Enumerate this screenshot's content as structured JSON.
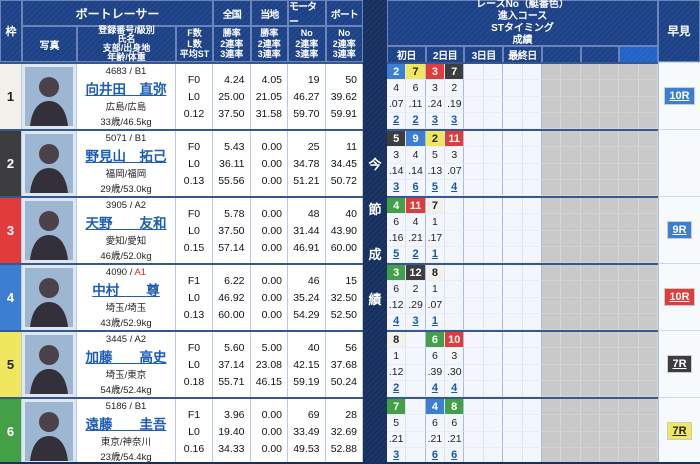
{
  "colors": {
    "white": "#f2f1ec",
    "black": "#3d3d3f",
    "red": "#e23b3c",
    "blue": "#3c7ed2",
    "yellow": "#efe85e",
    "green": "#43a047",
    "navy": "#16305f",
    "link_blue": "#1a5cb8",
    "class_red": "#d8262a"
  },
  "header": {
    "left": {
      "frame": "枠",
      "racer_group": "ボートレーサー",
      "photo": "写真",
      "info_lines": [
        "登録番号/級別",
        "氏名",
        "支部/出身地",
        "年齢/体重"
      ],
      "fl_lines": [
        "F数",
        "L数",
        "平均ST"
      ],
      "zenkoku": "全国",
      "touchi": "当地",
      "motor": "モーター",
      "boat": "ボート",
      "rate_lines": [
        "勝率",
        "2連率",
        "3連率"
      ],
      "no_lines": [
        "No",
        "2連率",
        "3連率"
      ]
    },
    "right": {
      "title_lines": [
        "レースNo（艇番色）",
        "進入コース",
        "STタイミング",
        "成績"
      ],
      "days": [
        "初日",
        "2日目",
        "3日目",
        "最終日",
        "",
        "",
        ""
      ],
      "hayami": "早見"
    }
  },
  "side_label": [
    "今",
    "節",
    "成",
    "績"
  ],
  "racers": [
    {
      "frame": "1",
      "frame_color": "white",
      "reg_prefix": "4683 / ",
      "reg_class": "B1",
      "class_red": false,
      "name": "向井田　直弥",
      "branch": "広島/広島",
      "age_weight": "33歳/46.5kg",
      "fl": [
        "F0",
        "L0",
        "0.12"
      ],
      "zenkoku": [
        "4.24",
        "25.00",
        "37.50"
      ],
      "touchi": [
        "4.05",
        "21.05",
        "31.58"
      ],
      "motor": [
        "19",
        "46.27",
        "59.70"
      ],
      "boat": [
        "50",
        "39.62",
        "59.91"
      ],
      "races": [
        {
          "no": "2",
          "color": "blue"
        },
        {
          "no": "7",
          "color": "yellow"
        },
        {
          "no": "3",
          "color": "red"
        },
        {
          "no": "7",
          "color": "black"
        },
        null,
        null,
        null,
        null
      ],
      "courses": [
        "4",
        "6",
        "3",
        "2",
        "",
        "",
        "",
        ""
      ],
      "sts": [
        ".07",
        ".11",
        ".24",
        ".19",
        "",
        "",
        "",
        ""
      ],
      "results": [
        "2",
        "2",
        "3",
        "3",
        "",
        "",
        "",
        ""
      ],
      "hayami": {
        "label": "10R",
        "color": "blue"
      }
    },
    {
      "frame": "2",
      "frame_color": "black",
      "reg_prefix": "5071 / ",
      "reg_class": "B1",
      "class_red": false,
      "name": "野見山　拓己",
      "branch": "福岡/福岡",
      "age_weight": "29歳/53.0kg",
      "fl": [
        "F0",
        "L0",
        "0.13"
      ],
      "zenkoku": [
        "5.43",
        "36.11",
        "55.56"
      ],
      "touchi": [
        "0.00",
        "0.00",
        "0.00"
      ],
      "motor": [
        "25",
        "34.78",
        "51.21"
      ],
      "boat": [
        "11",
        "34.45",
        "50.72"
      ],
      "races": [
        {
          "no": "5",
          "color": "black"
        },
        {
          "no": "9",
          "color": "blue"
        },
        {
          "no": "2",
          "color": "yellow"
        },
        {
          "no": "11",
          "color": "red"
        },
        null,
        null,
        null,
        null
      ],
      "courses": [
        "3",
        "4",
        "5",
        "3",
        "",
        "",
        "",
        ""
      ],
      "sts": [
        ".14",
        ".14",
        ".13",
        ".07",
        "",
        "",
        "",
        ""
      ],
      "results": [
        "3",
        "6",
        "5",
        "4",
        "",
        "",
        "",
        ""
      ],
      "hayami": null
    },
    {
      "frame": "3",
      "frame_color": "red",
      "reg_prefix": "3905 / ",
      "reg_class": "A2",
      "class_red": false,
      "name": "天野　　友和",
      "branch": "愛知/愛知",
      "age_weight": "46歳/52.0kg",
      "fl": [
        "F0",
        "L0",
        "0.15"
      ],
      "zenkoku": [
        "5.78",
        "37.50",
        "57.14"
      ],
      "touchi": [
        "0.00",
        "0.00",
        "0.00"
      ],
      "motor": [
        "48",
        "31.44",
        "46.91"
      ],
      "boat": [
        "40",
        "43.90",
        "60.00"
      ],
      "races": [
        {
          "no": "4",
          "color": "green"
        },
        {
          "no": "11",
          "color": "red"
        },
        {
          "no": "7",
          "color": "white"
        },
        null,
        null,
        null,
        null,
        null
      ],
      "courses": [
        "6",
        "4",
        "1",
        "",
        "",
        "",
        "",
        ""
      ],
      "sts": [
        ".16",
        ".21",
        ".17",
        "",
        "",
        "",
        "",
        ""
      ],
      "results": [
        "5",
        "2",
        "1",
        "",
        "",
        "",
        "",
        ""
      ],
      "hayami": {
        "label": "9R",
        "color": "blue"
      }
    },
    {
      "frame": "4",
      "frame_color": "blue",
      "reg_prefix": "4090 / ",
      "reg_class": "A1",
      "class_red": true,
      "name": "中村　　尊",
      "branch": "埼玉/埼玉",
      "age_weight": "43歳/52.9kg",
      "fl": [
        "F1",
        "L0",
        "0.13"
      ],
      "zenkoku": [
        "6.22",
        "46.92",
        "60.00"
      ],
      "touchi": [
        "0.00",
        "0.00",
        "0.00"
      ],
      "motor": [
        "46",
        "35.24",
        "54.29"
      ],
      "boat": [
        "15",
        "32.50",
        "52.50"
      ],
      "races": [
        {
          "no": "3",
          "color": "green"
        },
        {
          "no": "12",
          "color": "black"
        },
        {
          "no": "8",
          "color": "white"
        },
        null,
        null,
        null,
        null,
        null
      ],
      "courses": [
        "6",
        "2",
        "1",
        "",
        "",
        "",
        "",
        ""
      ],
      "sts": [
        ".12",
        ".29",
        ".07",
        "",
        "",
        "",
        "",
        ""
      ],
      "results": [
        "4",
        "3",
        "1",
        "",
        "",
        "",
        "",
        ""
      ],
      "hayami": {
        "label": "10R",
        "color": "red"
      }
    },
    {
      "frame": "5",
      "frame_color": "yellow",
      "reg_prefix": "3445 / ",
      "reg_class": "A2",
      "class_red": false,
      "name": "加藤　　高史",
      "branch": "埼玉/東京",
      "age_weight": "54歳/52.4kg",
      "fl": [
        "F0",
        "L0",
        "0.18"
      ],
      "zenkoku": [
        "5.60",
        "37.14",
        "55.71"
      ],
      "touchi": [
        "5.00",
        "23.08",
        "46.15"
      ],
      "motor": [
        "40",
        "42.15",
        "59.19"
      ],
      "boat": [
        "56",
        "37.68",
        "50.24"
      ],
      "races": [
        {
          "no": "8",
          "color": "white"
        },
        null,
        {
          "no": "6",
          "color": "green"
        },
        {
          "no": "10",
          "color": "red"
        },
        null,
        null,
        null,
        null
      ],
      "courses": [
        "1",
        "",
        "6",
        "3",
        "",
        "",
        "",
        ""
      ],
      "sts": [
        ".12",
        "",
        ".39",
        ".30",
        "",
        "",
        "",
        ""
      ],
      "results": [
        "2",
        "",
        "4",
        "4",
        "",
        "",
        "",
        ""
      ],
      "hayami": {
        "label": "7R",
        "color": "black"
      }
    },
    {
      "frame": "6",
      "frame_color": "green",
      "reg_prefix": "5186 / ",
      "reg_class": "B1",
      "class_red": false,
      "name": "遠藤　　圭吾",
      "branch": "東京/神奈川",
      "age_weight": "23歳/54.4kg",
      "fl": [
        "F1",
        "L0",
        "0.16"
      ],
      "zenkoku": [
        "3.96",
        "19.40",
        "34.33"
      ],
      "touchi": [
        "0.00",
        "0.00",
        "0.00"
      ],
      "motor": [
        "69",
        "33.49",
        "49.53"
      ],
      "boat": [
        "28",
        "32.69",
        "52.88"
      ],
      "races": [
        {
          "no": "7",
          "color": "green"
        },
        null,
        {
          "no": "4",
          "color": "blue"
        },
        {
          "no": "8",
          "color": "green"
        },
        null,
        null,
        null,
        null
      ],
      "courses": [
        "5",
        "",
        "6",
        "6",
        "",
        "",
        "",
        ""
      ],
      "sts": [
        ".21",
        "",
        ".21",
        ".21",
        "",
        "",
        "",
        ""
      ],
      "results": [
        "3",
        "",
        "6",
        "6",
        "",
        "",
        "",
        ""
      ],
      "hayami": {
        "label": "7R",
        "color": "yellow"
      }
    }
  ]
}
